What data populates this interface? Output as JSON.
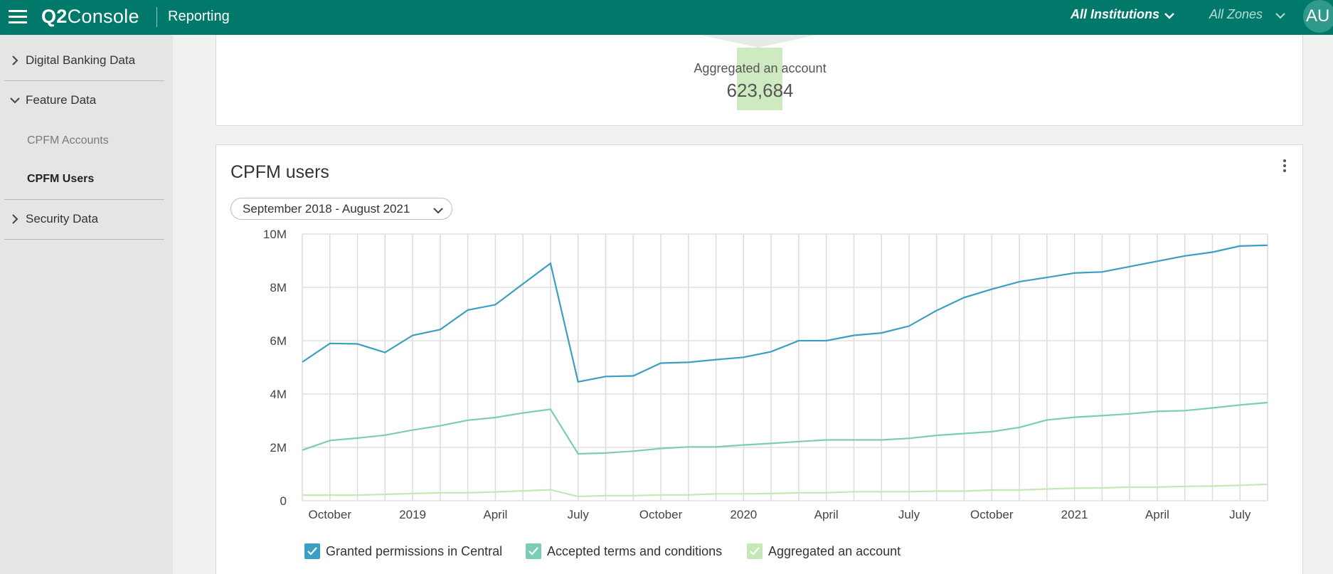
{
  "header": {
    "logo_bold": "Q2",
    "logo_rest": "Console",
    "app_name": "Reporting",
    "institution": "All Institutions",
    "zone": "All Zones",
    "user_initials": "AU"
  },
  "sidebar": {
    "items": [
      {
        "label": "Digital Banking Data",
        "expanded": false
      },
      {
        "label": "Feature Data",
        "expanded": true,
        "children": [
          {
            "label": "CPFM Accounts",
            "active": false
          },
          {
            "label": "CPFM Users",
            "active": true
          }
        ]
      },
      {
        "label": "Security Data",
        "expanded": false
      }
    ]
  },
  "funnel": {
    "label": "Aggregated an account",
    "value": "623,684"
  },
  "chart_card": {
    "title": "CPFM users",
    "date_range": "September 2018 - August 2021"
  },
  "colors": {
    "header": "#00796b",
    "series_granted": "#3a9fc0",
    "series_accepted": "#7ccdb6",
    "series_aggregated": "#c5e8b4"
  },
  "chart_data": {
    "type": "line",
    "ylim": [
      0,
      10000000
    ],
    "y_ticks": [
      "0",
      "2M",
      "4M",
      "6M",
      "8M",
      "10M"
    ],
    "y_tick_values": [
      0,
      2000000,
      4000000,
      6000000,
      8000000,
      10000000
    ],
    "x": [
      "2018-09",
      "2018-10",
      "2018-11",
      "2018-12",
      "2019-01",
      "2019-02",
      "2019-03",
      "2019-04",
      "2019-05",
      "2019-06",
      "2019-07",
      "2019-08",
      "2019-09",
      "2019-10",
      "2019-11",
      "2019-12",
      "2020-01",
      "2020-02",
      "2020-03",
      "2020-04",
      "2020-05",
      "2020-06",
      "2020-07",
      "2020-08",
      "2020-09",
      "2020-10",
      "2020-11",
      "2020-12",
      "2021-01",
      "2021-02",
      "2021-03",
      "2021-04",
      "2021-05",
      "2021-06",
      "2021-07",
      "2021-08"
    ],
    "x_tick_labels": [
      {
        "x": "2018-10",
        "label": "October"
      },
      {
        "x": "2019-01",
        "label": "2019"
      },
      {
        "x": "2019-04",
        "label": "April"
      },
      {
        "x": "2019-07",
        "label": "July"
      },
      {
        "x": "2019-10",
        "label": "October"
      },
      {
        "x": "2020-01",
        "label": "2020"
      },
      {
        "x": "2020-04",
        "label": "April"
      },
      {
        "x": "2020-07",
        "label": "July"
      },
      {
        "x": "2020-10",
        "label": "October"
      },
      {
        "x": "2021-01",
        "label": "2021"
      },
      {
        "x": "2021-04",
        "label": "April"
      },
      {
        "x": "2021-07",
        "label": "July"
      }
    ],
    "grid": true,
    "legend": "bottom",
    "series": [
      {
        "name": "Granted permissions in Central",
        "color": "#3a9fc0",
        "values": [
          5200000,
          5900000,
          5880000,
          5560000,
          6200000,
          6420000,
          7150000,
          7350000,
          8130000,
          8900000,
          4460000,
          4660000,
          4680000,
          5160000,
          5190000,
          5290000,
          5380000,
          5590000,
          6000000,
          6000000,
          6200000,
          6290000,
          6550000,
          7130000,
          7620000,
          7930000,
          8210000,
          8370000,
          8540000,
          8580000,
          8780000,
          8980000,
          9180000,
          9320000,
          9550000,
          9580000
        ]
      },
      {
        "name": "Accepted terms and conditions",
        "color": "#7ccdb6",
        "values": [
          1900000,
          2260000,
          2350000,
          2460000,
          2650000,
          2810000,
          3020000,
          3120000,
          3290000,
          3430000,
          1760000,
          1790000,
          1860000,
          1960000,
          2020000,
          2020000,
          2090000,
          2150000,
          2220000,
          2280000,
          2280000,
          2280000,
          2340000,
          2450000,
          2520000,
          2590000,
          2750000,
          3030000,
          3130000,
          3190000,
          3260000,
          3350000,
          3380000,
          3480000,
          3590000,
          3680000
        ]
      },
      {
        "name": "Aggregated an account",
        "color": "#c5e8b4",
        "values": [
          210000,
          210000,
          210000,
          240000,
          270000,
          300000,
          300000,
          330000,
          370000,
          410000,
          160000,
          190000,
          190000,
          220000,
          220000,
          260000,
          260000,
          270000,
          300000,
          300000,
          340000,
          340000,
          340000,
          360000,
          360000,
          400000,
          400000,
          440000,
          470000,
          480000,
          510000,
          510000,
          540000,
          550000,
          580000,
          620000
        ]
      }
    ]
  }
}
